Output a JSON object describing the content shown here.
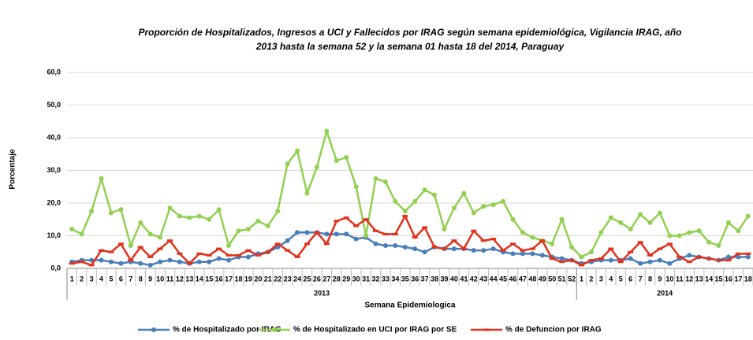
{
  "chart_data": {
    "type": "line",
    "title": [
      "Proporción de Hospitalizados, Ingresos a UCI y Fallecidos por IRAG según semana epidemiológica, Vigilancia IRAG, año",
      "2013 hasta la semana 52 y la semana  01 hasta 18 del 2014, Paraguay"
    ],
    "y_label": "Porcentaje",
    "x_label": "Semana Epidemiologica",
    "groups": [
      {
        "name": "2013",
        "categories": [
          "1",
          "2",
          "3",
          "4",
          "5",
          "6",
          "7",
          "8",
          "9",
          "10",
          "11",
          "12",
          "13",
          "14",
          "15",
          "16",
          "17",
          "18",
          "19",
          "20",
          "21",
          "22",
          "23",
          "24",
          "25",
          "26",
          "27",
          "28",
          "29",
          "30",
          "31",
          "32",
          "33",
          "34",
          "35",
          "36",
          "37",
          "38",
          "39",
          "40",
          "41",
          "42",
          "43",
          "44",
          "45",
          "46",
          "47",
          "48",
          "49",
          "50",
          "51",
          "52"
        ]
      },
      {
        "name": "2014",
        "categories": [
          "1",
          "2",
          "3",
          "4",
          "5",
          "6",
          "7",
          "8",
          "9",
          "10",
          "11",
          "12",
          "13",
          "14",
          "15",
          "16",
          "17",
          "18"
        ]
      }
    ],
    "ylim": [
      0,
      60
    ],
    "yticks": [
      {
        "value": 0,
        "label": "0,0"
      },
      {
        "value": 10,
        "label": "10,0"
      },
      {
        "value": 20,
        "label": "20,0"
      },
      {
        "value": 30,
        "label": "30,0"
      },
      {
        "value": 40,
        "label": "40,0"
      },
      {
        "value": 50,
        "label": "50,0"
      },
      {
        "value": 60,
        "label": "60,0"
      }
    ],
    "grid": true,
    "legend": "bottom",
    "series": [
      {
        "name": "% de Hospitalizado por IRAG",
        "color": "#4a7ebb",
        "marker": "circle",
        "values": [
          2,
          2.5,
          2.5,
          2.5,
          2,
          1.5,
          2,
          1.5,
          1,
          2,
          2.5,
          2,
          1.5,
          2,
          2,
          3,
          2.5,
          3.5,
          3.5,
          4.5,
          5,
          6.5,
          8.5,
          11,
          11,
          11,
          10.5,
          10.5,
          10.5,
          9,
          9.5,
          7.5,
          7,
          7,
          6.5,
          6,
          5,
          6.5,
          6,
          6,
          6,
          5.5,
          5.5,
          6,
          5,
          4.5,
          4.5,
          4.5,
          4,
          3.5,
          3,
          2.5,
          1.5,
          2,
          2.5,
          2.5,
          2.5,
          3,
          1.5,
          2,
          2.5,
          1.5,
          3,
          4,
          3.5,
          3,
          2.5,
          3.5,
          3.5,
          3.5
        ]
      },
      {
        "name": "% de Hospitalizado en UCI por IRAG por SE",
        "color": "#92d050",
        "marker": "circle",
        "values": [
          12,
          10.5,
          17.5,
          27.5,
          17,
          18,
          7,
          14,
          10.5,
          9.5,
          18.5,
          16,
          15.5,
          16,
          15,
          18,
          7,
          11.5,
          12,
          14.5,
          13,
          17.5,
          32,
          36,
          23,
          31,
          42,
          33,
          34,
          25,
          10,
          27.5,
          26.5,
          20.5,
          17.5,
          20.5,
          24,
          22.5,
          12,
          18.5,
          23,
          17,
          19,
          19.5,
          20.5,
          15,
          11,
          9.5,
          8.5,
          7.5,
          15,
          6.5,
          3.5,
          5,
          11,
          15.5,
          14,
          12,
          16.5,
          14,
          17,
          10,
          10,
          11,
          11.5,
          8,
          7,
          14,
          11.5,
          16
        ]
      },
      {
        "name": "% de Defuncion por IRAG",
        "color": "#e2321c",
        "marker": "dash",
        "values": [
          1.5,
          2,
          1,
          5.5,
          5,
          7.5,
          2.5,
          6.5,
          3.5,
          6,
          8.5,
          4.5,
          1.5,
          4.5,
          4,
          6,
          4,
          4,
          5.5,
          4,
          5,
          7.5,
          5.5,
          3.5,
          7.5,
          11,
          7.5,
          14.5,
          15.5,
          13,
          15,
          11.5,
          10.5,
          10.5,
          16,
          9.5,
          12.5,
          6.5,
          6,
          8.5,
          6,
          11.5,
          8.5,
          9,
          5.5,
          7.5,
          5.5,
          6,
          8.5,
          3,
          2,
          2.5,
          1,
          2.5,
          3,
          6,
          2,
          5,
          8,
          4,
          6,
          7.5,
          3.5,
          2,
          3.5,
          3,
          2.5,
          2.5,
          4.5,
          4.5
        ]
      }
    ]
  }
}
